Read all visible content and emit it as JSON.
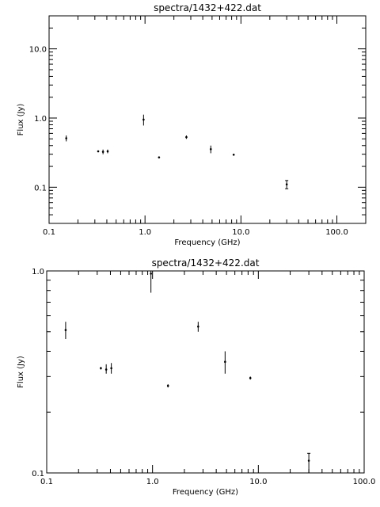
{
  "chart_data": [
    {
      "type": "scatter",
      "title": "spectra/1432+422.dat",
      "xlabel": "Frequency (GHz)",
      "ylabel": "Flux (Jy)",
      "xscale": "log",
      "yscale": "log",
      "xlim": [
        0.1,
        200
      ],
      "ylim": [
        0.03,
        30
      ],
      "xticks": [
        0.1,
        1.0,
        10.0,
        100.0
      ],
      "xtick_labels": [
        "0.1",
        "1.0",
        "10.0",
        "100.0"
      ],
      "yticks": [
        0.1,
        1.0,
        10.0
      ],
      "ytick_labels": [
        "0.1",
        "1.0",
        "10.0"
      ],
      "grid": false,
      "points": [
        {
          "x": 0.151,
          "y": 0.51,
          "ylo": 0.46,
          "yhi": 0.56
        },
        {
          "x": 0.325,
          "y": 0.33,
          "ylo": 0.325,
          "yhi": 0.335
        },
        {
          "x": 0.365,
          "y": 0.325,
          "ylo": 0.3,
          "yhi": 0.35
        },
        {
          "x": 0.408,
          "y": 0.33,
          "ylo": 0.31,
          "yhi": 0.35
        },
        {
          "x": 0.966,
          "y": 0.95,
          "ylo": 0.78,
          "yhi": 1.12
        },
        {
          "x": 1.4,
          "y": 0.27,
          "ylo": 0.265,
          "yhi": 0.275
        },
        {
          "x": 2.7,
          "y": 0.53,
          "ylo": 0.5,
          "yhi": 0.56
        },
        {
          "x": 4.85,
          "y": 0.355,
          "ylo": 0.31,
          "yhi": 0.4
        },
        {
          "x": 8.4,
          "y": 0.295,
          "ylo": 0.29,
          "yhi": 0.3
        },
        {
          "x": 30.0,
          "y": 0.11,
          "ylo": 0.095,
          "yhi": 0.125
        }
      ]
    },
    {
      "type": "scatter",
      "title": "spectra/1432+422.dat",
      "xlabel": "Frequency (GHz)",
      "ylabel": "Flux (Jy)",
      "xscale": "log",
      "yscale": "log",
      "xlim": [
        0.1,
        100
      ],
      "ylim": [
        0.1,
        1.0
      ],
      "xticks": [
        0.1,
        1.0,
        10.0,
        100.0
      ],
      "xtick_labels": [
        "0.1",
        "1.0",
        "10.0",
        "100.0"
      ],
      "yticks": [
        0.1,
        1.0
      ],
      "ytick_labels": [
        "0.1",
        "1.0"
      ],
      "grid": false,
      "points": [
        {
          "x": 0.151,
          "y": 0.51,
          "ylo": 0.46,
          "yhi": 0.56
        },
        {
          "x": 0.325,
          "y": 0.33,
          "ylo": 0.325,
          "yhi": 0.335
        },
        {
          "x": 0.365,
          "y": 0.325,
          "ylo": 0.31,
          "yhi": 0.345
        },
        {
          "x": 0.408,
          "y": 0.33,
          "ylo": 0.31,
          "yhi": 0.35
        },
        {
          "x": 0.966,
          "y": 0.97,
          "ylo": 0.78,
          "yhi": 1.0
        },
        {
          "x": 1.4,
          "y": 0.27,
          "ylo": 0.265,
          "yhi": 0.275
        },
        {
          "x": 2.7,
          "y": 0.53,
          "ylo": 0.5,
          "yhi": 0.56
        },
        {
          "x": 4.85,
          "y": 0.355,
          "ylo": 0.31,
          "yhi": 0.4
        },
        {
          "x": 8.4,
          "y": 0.295,
          "ylo": 0.29,
          "yhi": 0.3
        },
        {
          "x": 30.0,
          "y": 0.115,
          "ylo": 0.1,
          "yhi": 0.125
        }
      ]
    }
  ]
}
